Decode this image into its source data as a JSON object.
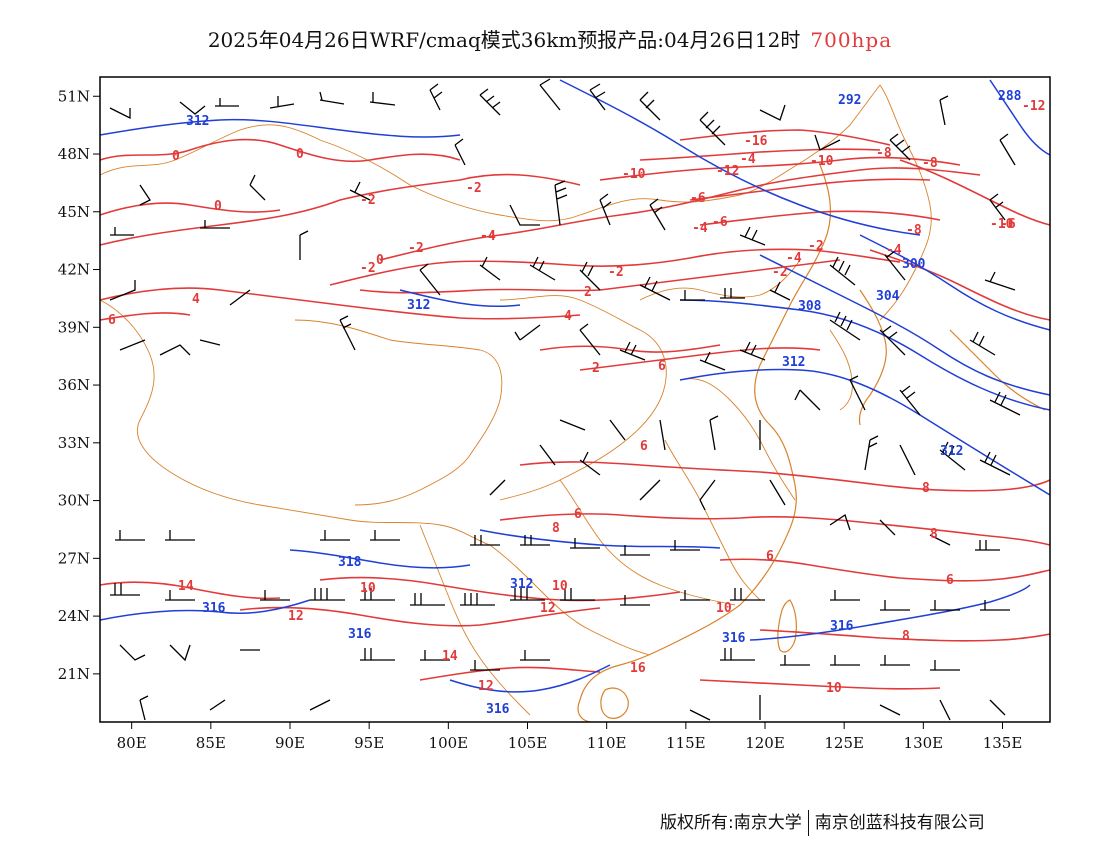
{
  "header": {
    "title": "2025年04月26日WRF/cmaq模式36km预报产品:04月26日12时",
    "level": "700hpa"
  },
  "map": {
    "lon_range": [
      78,
      138
    ],
    "lat_range": [
      18.5,
      52
    ],
    "lon_ticks": [
      "80E",
      "85E",
      "90E",
      "95E",
      "100E",
      "105E",
      "110E",
      "115E",
      "120E",
      "125E",
      "130E",
      "135E"
    ],
    "lat_ticks": [
      "51N",
      "48N",
      "45N",
      "42N",
      "39N",
      "36N",
      "33N",
      "30N",
      "27N",
      "24N",
      "21N"
    ],
    "colors": {
      "temperature": "#e23a3a",
      "geopotential": "#1f3fd6",
      "wind": "#000000",
      "borders": "#d9822b"
    },
    "geopotential_labels": [
      "312",
      "292",
      "288",
      "312",
      "300",
      "304",
      "308",
      "312",
      "312",
      "318",
      "316",
      "312",
      "316",
      "316",
      "316",
      "316"
    ],
    "temperature_labels": [
      "-12",
      "0",
      "0",
      "-2",
      "0",
      "-2",
      "-4",
      "-2",
      "-2",
      "-2",
      "0",
      "-16",
      "-4",
      "-10",
      "-12",
      "-8",
      "-10",
      "-8",
      "-6",
      "-8",
      "-6",
      "-4",
      "-2",
      "-6",
      "-10",
      "-4",
      "-4",
      "-2",
      "4",
      "6",
      "-4",
      "4",
      "2",
      "2",
      "8",
      "6",
      "14",
      "12",
      "10",
      "12",
      "14",
      "12",
      "10",
      "6",
      "8",
      "16",
      "6",
      "6",
      "10",
      "8",
      "10",
      "6",
      "8"
    ]
  },
  "footer": {
    "copyright": "版权所有:南京大学",
    "company": "南京创蓝科技有限公司"
  }
}
